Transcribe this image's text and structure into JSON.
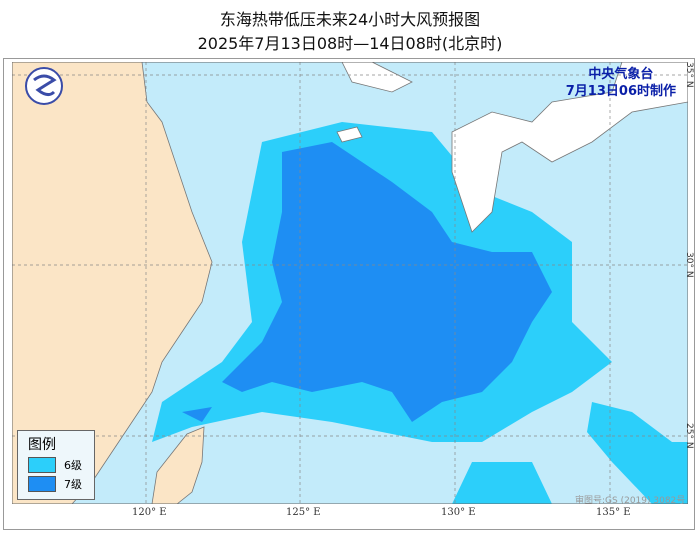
{
  "header": {
    "title": "东海热带低压未来24小时大风预报图",
    "subtitle": "2025年7月13日08时—14日08时(北京时)"
  },
  "agency": {
    "name": "中央气象台",
    "issued": "7月13日06时制作"
  },
  "legend": {
    "title": "图例",
    "items": [
      {
        "label": "6级",
        "color": "#2ccffa"
      },
      {
        "label": "7级",
        "color": "#1e8ef3"
      }
    ]
  },
  "longitudes": [
    "120° E",
    "125° E",
    "130° E",
    "135° E"
  ],
  "latitudes": [
    "35° N",
    "30° N",
    "25° N"
  ],
  "approval": "审图号:GS (2019) 3082号",
  "colors": {
    "sea": "#c3ebfa",
    "land": "#fbe5c6",
    "outer_land": "#ffffff"
  }
}
